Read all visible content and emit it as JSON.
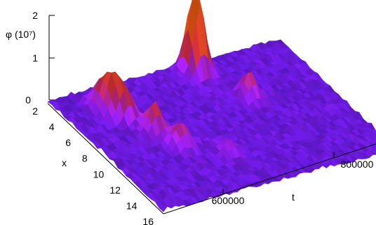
{
  "chart_data": {
    "type": "surface",
    "z_label": "φ (10⁷)",
    "x_label": "x",
    "t_label": "t",
    "z_ticks": [
      "0",
      "1",
      "2"
    ],
    "x_ticks": [
      "2",
      "4",
      "6",
      "8",
      "10",
      "12",
      "14",
      "16"
    ],
    "t_ticks": [
      "600000",
      "800000"
    ],
    "x_range": [
      2,
      16
    ],
    "t_range": [
      450000,
      900000
    ],
    "z_range": [
      0,
      2
    ],
    "colors": {
      "low": "#5b18d6",
      "mid": "#a020f0",
      "high": "#c82a3a",
      "peak": "#e05510"
    },
    "peaks": [
      {
        "x": 4,
        "t": 520000,
        "phi": 0.55
      },
      {
        "x": 5,
        "t": 530000,
        "phi": 0.75
      },
      {
        "x": 6,
        "t": 540000,
        "phi": 0.55
      },
      {
        "x": 8,
        "t": 560000,
        "phi": 0.7
      },
      {
        "x": 10,
        "t": 580000,
        "phi": 0.55
      },
      {
        "x": 3,
        "t": 720000,
        "phi": 2.0
      },
      {
        "x": 7,
        "t": 760000,
        "phi": 0.55
      },
      {
        "x": 12,
        "t": 640000,
        "phi": 0.3
      }
    ]
  }
}
